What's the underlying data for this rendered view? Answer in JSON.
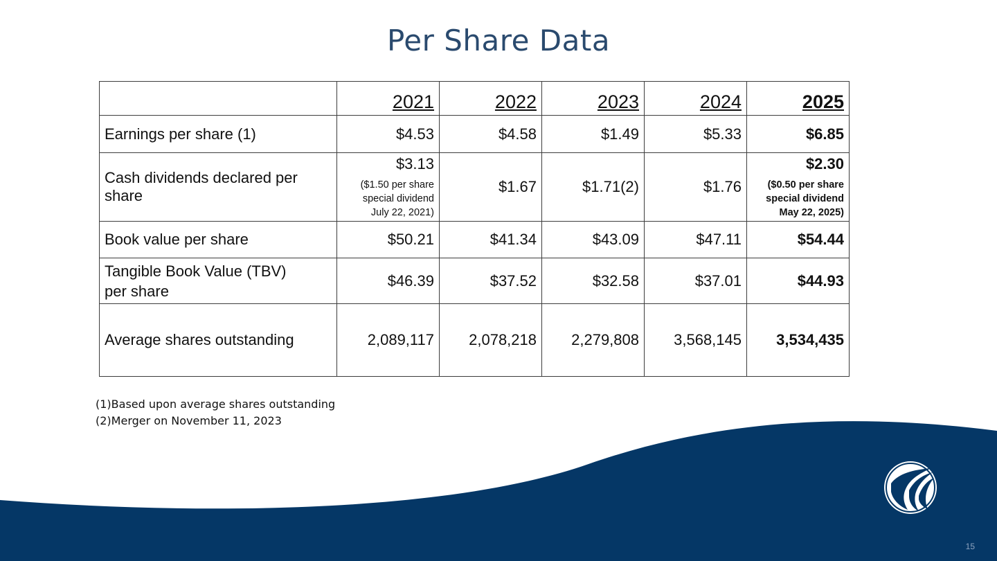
{
  "title": "Per Share Data",
  "table": {
    "years": [
      "2021",
      "2022",
      "2023",
      "2024",
      "2025"
    ],
    "rows": {
      "eps": {
        "label": "Earnings per share (1)",
        "values": [
          "$4.53",
          "$4.58",
          "$1.49",
          "$5.33",
          "$6.85"
        ]
      },
      "dividends": {
        "label": "Cash dividends declared per share",
        "y2021": {
          "value": "$3.13",
          "note_line1": "($1.50 per share",
          "note_line2": "special dividend",
          "note_line3": "July 22, 2021)"
        },
        "y2022": "$1.67",
        "y2023": "$1.71(2)",
        "y2024": "$1.76",
        "y2025": {
          "value": "$2.30",
          "note_line1": "($0.50 per share",
          "note_line2": "special dividend",
          "note_line3": "May 22, 2025)"
        }
      },
      "book_value": {
        "label": "Book value per share",
        "values": [
          "$50.21",
          "$41.34",
          "$43.09",
          "$47.11",
          "$54.44"
        ]
      },
      "tbv": {
        "label_line1": "Tangible Book Value (TBV)",
        "label_line2": "per share",
        "values": [
          "$46.39",
          "$37.52",
          "$32.58",
          "$37.01",
          "$44.93"
        ]
      },
      "shares": {
        "label": "Average shares outstanding",
        "values": [
          "2,089,117",
          "2,078,218",
          "2,279,808",
          "3,568,145",
          "3,534,435"
        ]
      }
    }
  },
  "footnotes": [
    {
      "marker": "(1)",
      "text": "Based upon average shares outstanding"
    },
    {
      "marker": "(2)",
      "text": "Merger on November 11, 2023"
    }
  ],
  "page_number": "15",
  "colors": {
    "title": "#2a4a6e",
    "wave": "#053766"
  },
  "icons": {
    "logo": "company-logo-emblem"
  }
}
